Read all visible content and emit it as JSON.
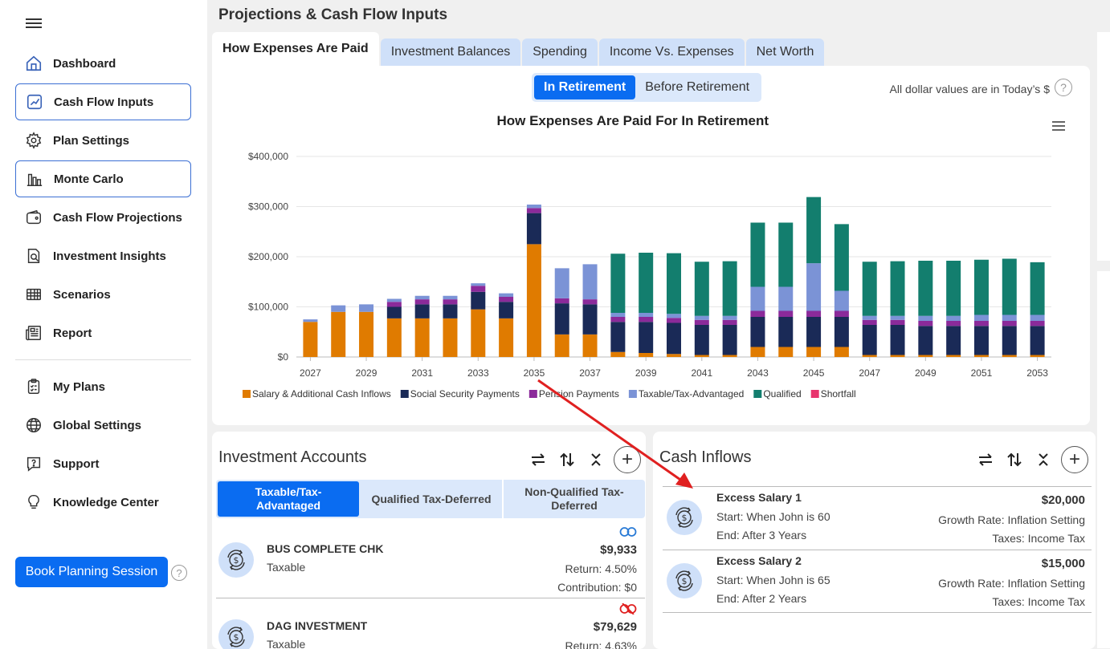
{
  "sidebar": {
    "items": [
      {
        "label": "Dashboard",
        "icon": "home-icon"
      },
      {
        "label": "Cash Flow Inputs",
        "icon": "chart-up-icon"
      },
      {
        "label": "Plan Settings",
        "icon": "gear-icon"
      },
      {
        "label": "Monte Carlo",
        "icon": "bar-chart-icon"
      },
      {
        "label": "Cash Flow Projections",
        "icon": "wallet-icon"
      },
      {
        "label": "Investment Insights",
        "icon": "magnify-doc-icon"
      },
      {
        "label": "Scenarios",
        "icon": "grid-icon"
      },
      {
        "label": "Report",
        "icon": "newspaper-icon"
      },
      {
        "label": "My Plans",
        "icon": "clipboard-icon"
      },
      {
        "label": "Global Settings",
        "icon": "globe-icon"
      },
      {
        "label": "Support",
        "icon": "chat-question-icon"
      },
      {
        "label": "Knowledge Center",
        "icon": "lightbulb-icon"
      }
    ],
    "book_button": "Book Planning Session",
    "help": "?"
  },
  "page": {
    "title": "Projections & Cash Flow Inputs"
  },
  "tabs": [
    "How Expenses Are Paid",
    "Investment Balances",
    "Spending",
    "Income Vs. Expenses",
    "Net Worth"
  ],
  "toggle": {
    "on": "In Retirement",
    "off": "Before Retirement"
  },
  "dollar_note": "All dollar values are in Today’s $",
  "help": "?",
  "chart_data": {
    "type": "bar",
    "stacked": true,
    "title": "How Expenses Are Paid For In Retirement",
    "categories": [
      "2027",
      "2028",
      "2029",
      "2030",
      "2031",
      "2032",
      "2033",
      "2034",
      "2035",
      "2036",
      "2037",
      "2038",
      "2039",
      "2040",
      "2041",
      "2042",
      "2043",
      "2044",
      "2045",
      "2046",
      "2047",
      "2048",
      "2049",
      "2050",
      "2051",
      "2052",
      "2053"
    ],
    "x_tick_labels": [
      "2027",
      "2029",
      "2031",
      "2033",
      "2035",
      "2037",
      "2039",
      "2041",
      "2043",
      "2045",
      "2047",
      "2049",
      "2051",
      "2053"
    ],
    "y_tick_labels": [
      "$0",
      "$100,000",
      "$200,000",
      "$300,000",
      "$400,000"
    ],
    "ylim": [
      0,
      400000
    ],
    "series": [
      {
        "name": "Salary & Additional Cash Inflows",
        "color": "#e07b00",
        "values": [
          70000,
          90000,
          90000,
          77000,
          77000,
          77000,
          95000,
          77000,
          225000,
          45000,
          45000,
          10000,
          8000,
          6000,
          4000,
          4000,
          20000,
          20000,
          20000,
          20000,
          4000,
          4000,
          4000,
          4000,
          4000,
          4000,
          4000
        ]
      },
      {
        "name": "Social Security Payments",
        "color": "#1a2a57",
        "values": [
          0,
          0,
          0,
          23000,
          28000,
          28000,
          35000,
          33000,
          62000,
          62000,
          60000,
          60000,
          62000,
          62000,
          60000,
          60000,
          60000,
          60000,
          60000,
          60000,
          60000,
          60000,
          58000,
          58000,
          58000,
          58000,
          58000
        ]
      },
      {
        "name": "Pension Payments",
        "color": "#8b2a9a",
        "values": [
          0,
          0,
          0,
          10000,
          10000,
          10000,
          12000,
          10000,
          10000,
          10000,
          10000,
          10000,
          10000,
          10000,
          10000,
          10000,
          12000,
          12000,
          12000,
          12000,
          10000,
          10000,
          10000,
          10000,
          10000,
          10000,
          10000
        ]
      },
      {
        "name": "Taxable/Tax-Advantaged",
        "color": "#7b93d6",
        "values": [
          5000,
          13000,
          15000,
          6000,
          7000,
          7000,
          5000,
          7000,
          7000,
          60000,
          70000,
          8000,
          8000,
          8000,
          8000,
          8000,
          48000,
          48000,
          95000,
          40000,
          8000,
          8000,
          10000,
          10000,
          12000,
          12000,
          12000
        ]
      },
      {
        "name": "Qualified",
        "color": "#137e6e",
        "values": [
          0,
          0,
          0,
          0,
          0,
          0,
          0,
          0,
          0,
          0,
          0,
          118000,
          120000,
          121000,
          108000,
          109000,
          128000,
          128000,
          132000,
          133000,
          108000,
          109000,
          110000,
          110000,
          110000,
          112000,
          105000
        ]
      },
      {
        "name": "Shortfall",
        "color": "#e8336d",
        "values": [
          0,
          0,
          0,
          0,
          0,
          0,
          0,
          0,
          0,
          0,
          0,
          0,
          0,
          0,
          0,
          0,
          0,
          0,
          0,
          0,
          0,
          0,
          0,
          0,
          0,
          0,
          0
        ]
      }
    ]
  },
  "investment_accounts": {
    "title": "Investment Accounts",
    "subtabs": [
      "Taxable/Tax-Advantaged",
      "Qualified Tax-Deferred",
      "Non-Qualified Tax-Deferred"
    ],
    "accounts": [
      {
        "name": "BUS COMPLETE CHK",
        "type": "Taxable",
        "value": "$9,933",
        "return": "Return: 4.50%",
        "contribution": "Contribution: $0",
        "link_color": "#2a7bd6"
      },
      {
        "name": "DAG INVESTMENT",
        "type": "Taxable",
        "value": "$79,629",
        "return": "Return: 4.63%",
        "link_color": "#e02020"
      }
    ]
  },
  "cash_inflows": {
    "title": "Cash Inflows",
    "items": [
      {
        "name": "Excess Salary 1",
        "start": "Start: When John is 60",
        "end": "End: After 3 Years",
        "amount": "$20,000",
        "growth": "Growth Rate: Inflation Setting",
        "taxes": "Taxes: Income Tax"
      },
      {
        "name": "Excess Salary 2",
        "start": "Start: When John is 65",
        "end": "End: After 2 Years",
        "amount": "$15,000",
        "growth": "Growth Rate: Inflation Setting",
        "taxes": "Taxes: Income Tax"
      }
    ]
  },
  "annotation": {
    "arrow_color": "#e02020"
  }
}
